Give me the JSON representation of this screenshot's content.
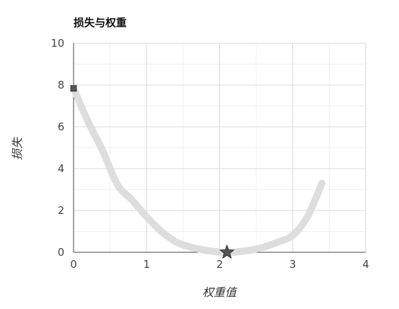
{
  "chart_data": {
    "type": "line",
    "title": "损失与权重",
    "xlabel": "权重值",
    "ylabel": "损失",
    "xlim": [
      0,
      4
    ],
    "ylim": [
      0,
      10
    ],
    "x_ticks": [
      "0",
      "1",
      "2",
      "3",
      "4"
    ],
    "y_ticks": [
      "0",
      "2",
      "4",
      "6",
      "8",
      "10"
    ],
    "grid": true,
    "series": [
      {
        "type": "line",
        "color": "#dddddd",
        "x": [
          0,
          0.2,
          0.4,
          0.6,
          0.8,
          1.0,
          1.2,
          1.4,
          1.6,
          1.8,
          2.0,
          2.1,
          2.2,
          2.4,
          2.6,
          2.8,
          3.0,
          3.2,
          3.4
        ],
        "y": [
          7.84,
          6.24,
          4.84,
          3.24,
          2.5,
          1.7,
          1.0,
          0.5,
          0.25,
          0.1,
          0.01,
          0.0,
          0.01,
          0.09,
          0.25,
          0.49,
          0.81,
          1.69,
          3.3
        ]
      },
      {
        "type": "marker",
        "marker": "square",
        "color": "#555555",
        "x": [
          0
        ],
        "y": [
          7.84
        ]
      },
      {
        "type": "marker",
        "marker": "star",
        "color": "#555555",
        "x": [
          2.1
        ],
        "y": [
          0.0
        ]
      }
    ]
  }
}
